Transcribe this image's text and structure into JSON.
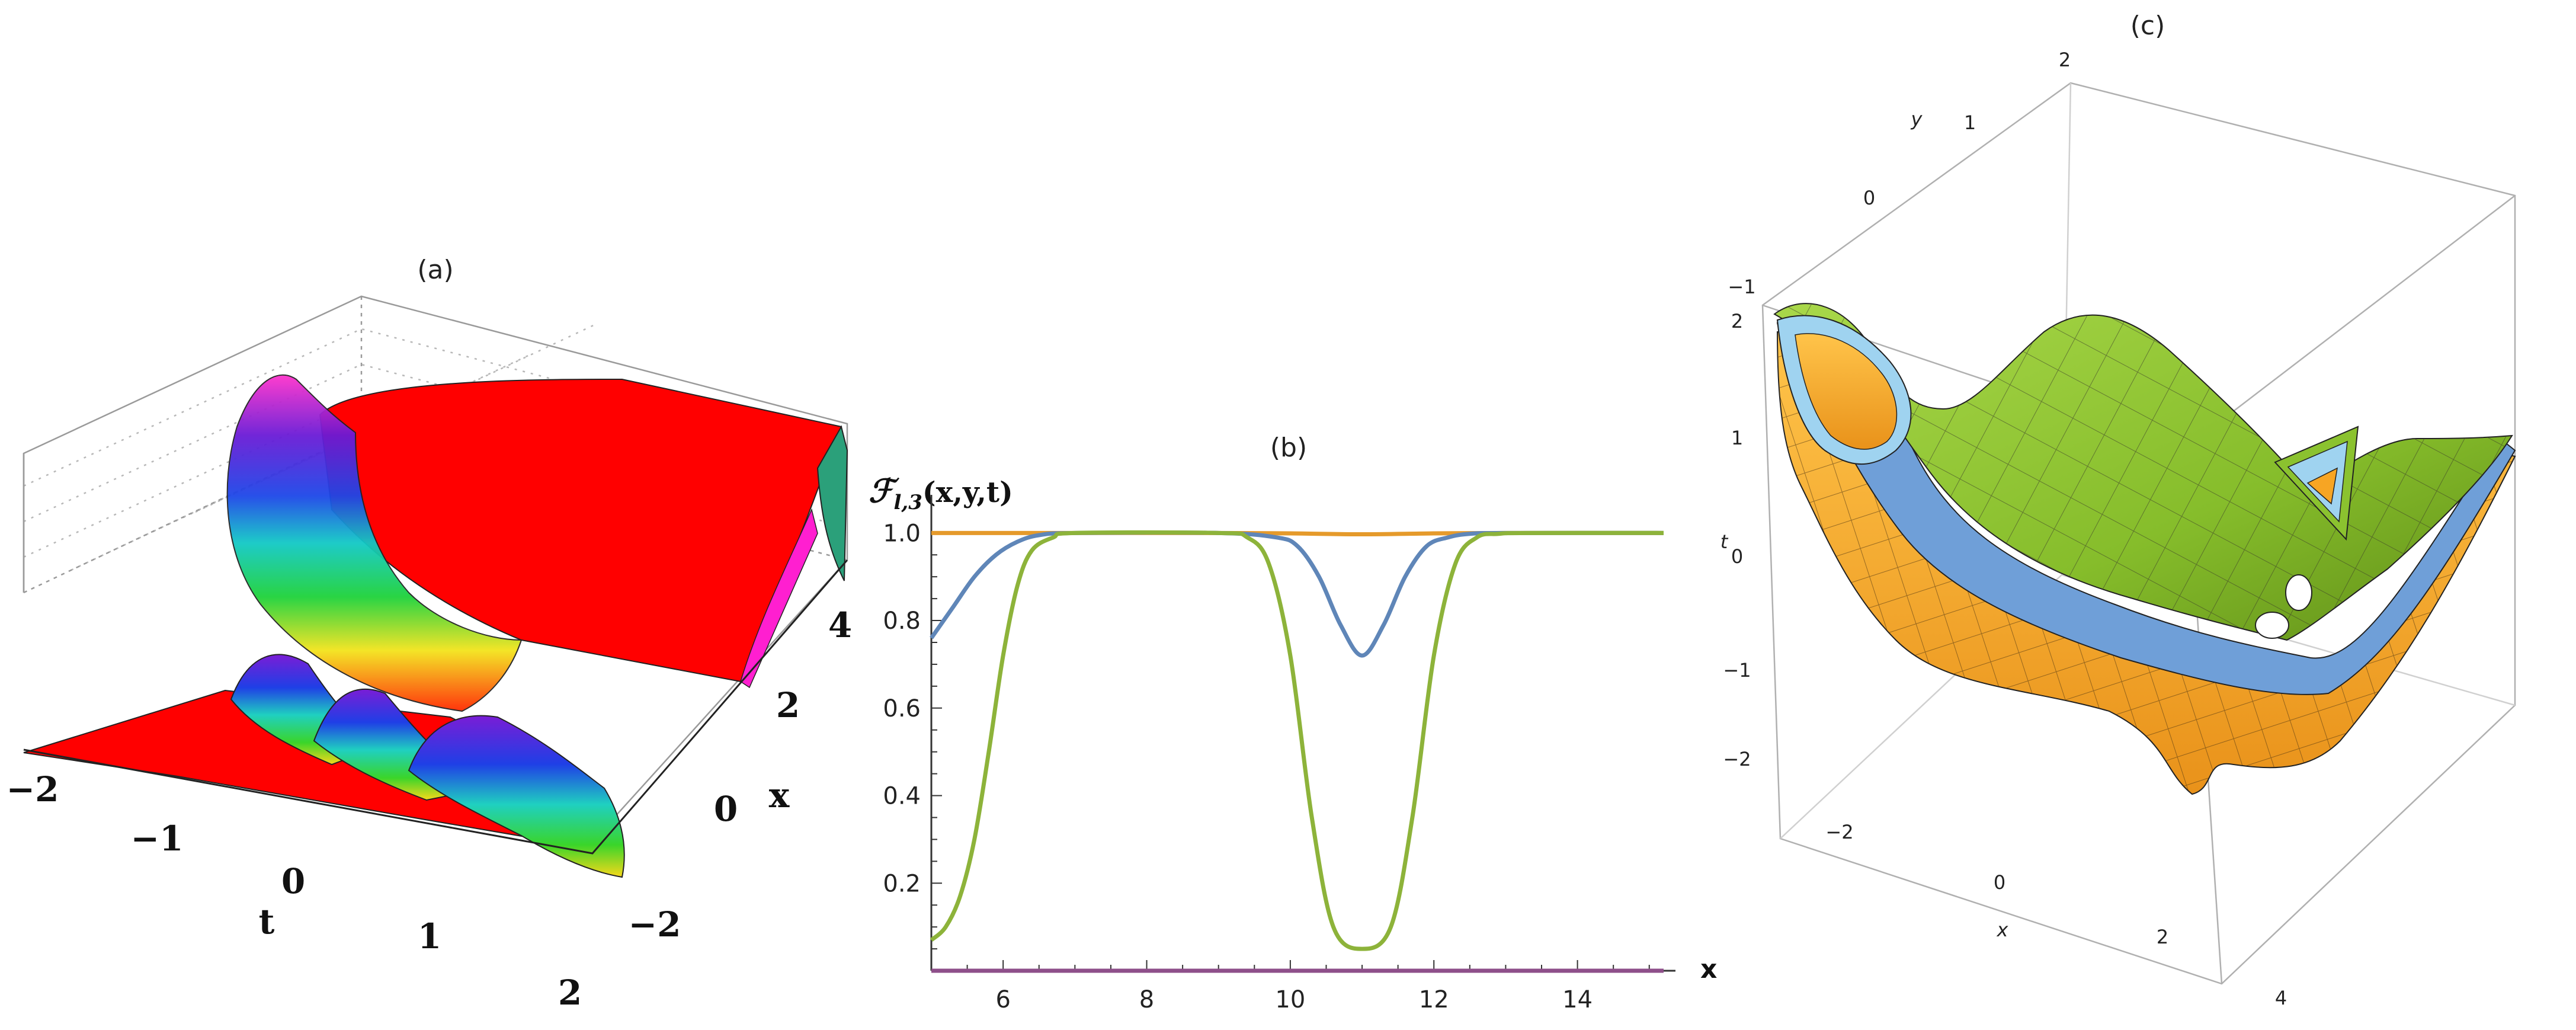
{
  "panels": {
    "a": {
      "caption": "(a)",
      "x_axis_label": "x",
      "t_axis_label": "t",
      "t_ticks": [
        "−2",
        "−1",
        "0",
        "1",
        "2"
      ],
      "x_ticks": [
        "−2",
        "0",
        "2",
        "4"
      ],
      "surface_color": "#ff0000"
    },
    "b": {
      "caption": "(b)",
      "y_axis_label": "ℱ",
      "y_axis_label_sub": "l,3",
      "y_axis_label_args": "(x,y,t)",
      "x_axis_label": "x"
    },
    "c": {
      "caption": "(c)",
      "y_ticks": [
        "2",
        "1",
        "0",
        "−1"
      ],
      "t_ticks": [
        "2",
        "1",
        "0",
        "−1",
        "−2"
      ],
      "x_ticks": [
        "−2",
        "0",
        "2",
        "4"
      ],
      "x_label": "x",
      "y_label": "y",
      "t_label": "t",
      "colors": {
        "green": "#8bc22f",
        "blue": "#6f9fd8",
        "light_blue": "#9fd3f0",
        "orange": "#f7a523"
      }
    }
  },
  "chart_data": {
    "type": "line",
    "title": "",
    "xlabel": "x",
    "ylabel": "ℱl,3(x,y,t)",
    "xlim": [
      5,
      15.2
    ],
    "ylim": [
      0,
      1.06
    ],
    "x_ticks": [
      6,
      8,
      10,
      12,
      14
    ],
    "y_ticks": [
      0.2,
      0.4,
      0.6,
      0.8,
      1.0
    ],
    "y_tick_labels": [
      "0.2",
      "0.4",
      "0.6",
      "0.8",
      "1.0"
    ],
    "series": [
      {
        "color": "#e59a2b",
        "x": [
          5,
          7,
          9,
          10,
          11,
          12,
          13,
          15.2
        ],
        "y": [
          1.0,
          1.0,
          1.0,
          0.999,
          0.997,
          0.999,
          1.0,
          1.0
        ]
      },
      {
        "color": "#5f86b8",
        "x": [
          5,
          5.3,
          5.6,
          5.9,
          6.2,
          6.5,
          7,
          9,
          9.8,
          10.1,
          10.4,
          10.7,
          11,
          11.3,
          11.6,
          11.9,
          12.2,
          12.5,
          13,
          15.2
        ],
        "y": [
          0.76,
          0.83,
          0.9,
          0.95,
          0.98,
          0.995,
          1.0,
          1.0,
          0.99,
          0.97,
          0.9,
          0.79,
          0.72,
          0.79,
          0.9,
          0.97,
          0.99,
          0.998,
          1.0,
          1.0
        ]
      },
      {
        "color": "#8db33a",
        "x": [
          5,
          5.2,
          5.4,
          5.6,
          5.8,
          6.0,
          6.2,
          6.4,
          6.7,
          7,
          9,
          9.4,
          9.7,
          10.0,
          10.3,
          10.6,
          11.0,
          11.4,
          11.7,
          12.0,
          12.3,
          12.6,
          12.9,
          13.3,
          15.2
        ],
        "y": [
          0.07,
          0.1,
          0.17,
          0.3,
          0.5,
          0.72,
          0.88,
          0.96,
          0.99,
          1.0,
          1.0,
          0.99,
          0.93,
          0.72,
          0.35,
          0.1,
          0.05,
          0.1,
          0.35,
          0.72,
          0.93,
          0.99,
          0.998,
          1.0,
          1.0
        ]
      },
      {
        "color": "#8e4f8a",
        "x": [
          5,
          15.2
        ],
        "y": [
          0.0,
          0.0
        ]
      }
    ]
  }
}
